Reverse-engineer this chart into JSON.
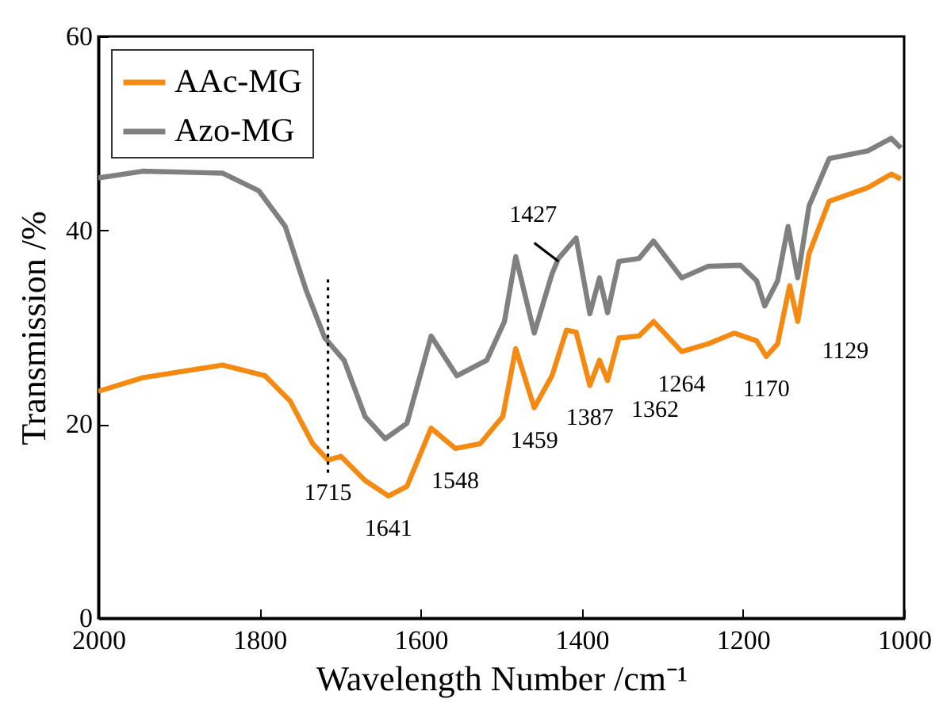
{
  "chart_data": {
    "type": "line",
    "xlabel": "Wavelength Number /cm⁻¹",
    "ylabel": "Transmission /%",
    "xlim": [
      2000,
      1000
    ],
    "xticks": [
      2000,
      1800,
      1600,
      1400,
      1200,
      1000
    ],
    "ylim": [
      0,
      60
    ],
    "yticks": [
      0,
      20,
      40,
      60
    ],
    "legend": "top left",
    "grid": false,
    "marker": "none",
    "line_style": "solid",
    "series": [
      {
        "name": "AAc-MG",
        "color": "#f58a12",
        "x": [
          2000,
          1945,
          1846,
          1793,
          1762,
          1734,
          1715,
          1699,
          1669,
          1640,
          1617,
          1587,
          1557,
          1526,
          1498,
          1482,
          1459,
          1437,
          1419,
          1407,
          1390,
          1378,
          1368,
          1354,
          1329,
          1311,
          1276,
          1243,
          1211,
          1183,
          1171,
          1157,
          1142,
          1132,
          1118,
          1093,
          1045,
          1016,
          1004
        ],
        "values": [
          23.4,
          24.8,
          26.1,
          25.0,
          22.4,
          18.0,
          16.3,
          16.7,
          14.2,
          12.6,
          13.6,
          19.6,
          17.5,
          18.0,
          20.8,
          27.8,
          21.7,
          25.0,
          29.7,
          29.5,
          24.0,
          26.6,
          24.5,
          28.9,
          29.1,
          30.6,
          27.5,
          28.3,
          29.4,
          28.6,
          27.0,
          28.3,
          34.3,
          30.6,
          37.6,
          43.0,
          44.4,
          45.8,
          45.3
        ]
      },
      {
        "name": "Azo-MG",
        "color": "#808080",
        "x": [
          2000,
          1945,
          1846,
          1801,
          1768,
          1742,
          1719,
          1695,
          1669,
          1644,
          1617,
          1587,
          1555,
          1518,
          1496,
          1482,
          1459,
          1437,
          1429,
          1407,
          1390,
          1378,
          1368,
          1354,
          1329,
          1311,
          1276,
          1243,
          1203,
          1183,
          1173,
          1157,
          1144,
          1132,
          1118,
          1093,
          1045,
          1016,
          1004
        ],
        "values": [
          45.4,
          46.1,
          45.9,
          44.1,
          40.4,
          33.8,
          28.9,
          26.6,
          20.8,
          18.5,
          20.1,
          29.1,
          25.0,
          26.6,
          30.6,
          37.3,
          29.4,
          35.5,
          37.1,
          39.2,
          31.4,
          35.1,
          31.5,
          36.8,
          37.1,
          38.9,
          35.1,
          36.3,
          36.4,
          34.8,
          32.2,
          34.8,
          40.4,
          35.1,
          42.5,
          47.4,
          48.2,
          49.5,
          48.5
        ]
      },
      {
        "type": "line",
        "color": "#000000",
        "line_style": "dotted",
        "x": [
          1715,
          1715
        ],
        "values": [
          15,
          35
        ]
      },
      {
        "type": "line",
        "color": "#000000",
        "line_style": "solid",
        "x": [
          1459,
          1429
        ],
        "values": [
          38.7,
          36.8
        ]
      }
    ],
    "annotations": [
      {
        "text": "1715",
        "x": 1715,
        "y": 16.3
      },
      {
        "text": "1641",
        "x": 1640,
        "y": 12.6
      },
      {
        "text": "1548",
        "x": 1557,
        "y": 17.5
      },
      {
        "text": "1459",
        "x": 1459,
        "y": 21.7
      },
      {
        "text": "1387",
        "x": 1390,
        "y": 24.0
      },
      {
        "text": "1362",
        "x": 1368,
        "y": 24.5
      },
      {
        "text": "1264",
        "x": 1276,
        "y": 27.5
      },
      {
        "text": "1170",
        "x": 1171,
        "y": 27.0
      },
      {
        "text": "1129",
        "x": 1132,
        "y": 30.6
      },
      {
        "text": "1427",
        "x": 1429,
        "y": 37.1
      }
    ]
  }
}
